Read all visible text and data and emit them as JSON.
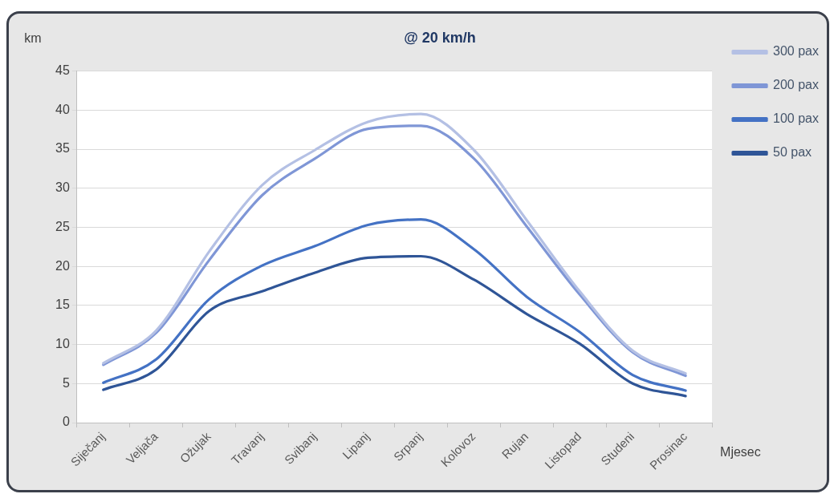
{
  "chart_data": {
    "type": "line",
    "title": "@ 20 km/h",
    "ylabel": "km",
    "xlabel": "Mjesec",
    "categories": [
      "Siječanj",
      "Veljača",
      "Ožujak",
      "Travanj",
      "Svibanj",
      "Lipanj",
      "Srpanj",
      "Kolovoz",
      "Rujan",
      "Listopad",
      "Studeni",
      "Prosinac"
    ],
    "series": [
      {
        "name": "300 pax",
        "color": "#b4c0e4",
        "values": [
          7.6,
          11.8,
          21.9,
          30.4,
          34.9,
          38.5,
          39.5,
          34.9,
          25.9,
          16.8,
          9.2,
          6.3
        ]
      },
      {
        "name": "200 pax",
        "color": "#7f96d6",
        "values": [
          7.4,
          11.5,
          20.8,
          29.1,
          33.8,
          37.6,
          38.0,
          33.8,
          25.1,
          16.4,
          9.0,
          6.0
        ]
      },
      {
        "name": "100 pax",
        "color": "#4472c4",
        "values": [
          5.1,
          8.1,
          15.8,
          20.1,
          22.6,
          25.3,
          26.0,
          22.2,
          16.1,
          11.6,
          6.1,
          4.1
        ]
      },
      {
        "name": "50 pax",
        "color": "#2f5597",
        "values": [
          4.2,
          6.8,
          14.3,
          16.8,
          19.2,
          21.1,
          21.3,
          18.3,
          13.9,
          10.1,
          5.0,
          3.4
        ]
      }
    ],
    "ylim": [
      0,
      45
    ],
    "yticks": [
      0,
      5,
      10,
      15,
      20,
      25,
      30,
      35,
      40,
      45
    ],
    "grid": "y",
    "legend": "right",
    "marker": "none",
    "line_style": "solid"
  }
}
